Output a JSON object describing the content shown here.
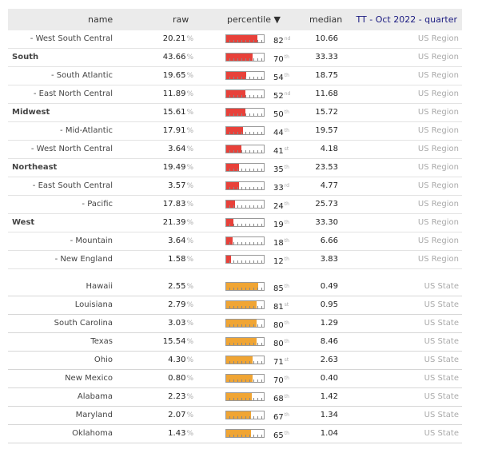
{
  "header": {
    "name": "name",
    "raw": "raw",
    "percentile": "percentile ▼",
    "median": "median",
    "context": "TT - Oct 2022 - quarter"
  },
  "colors": {
    "region_bar": "#e8413a",
    "state_bar": "#f0a534"
  },
  "region_rows": [
    {
      "name": "- West South Central",
      "bold": false,
      "raw": "20.21",
      "pct": 82,
      "suffix": "nd",
      "median": "10.66",
      "ctx": "US Region"
    },
    {
      "name": "South",
      "bold": true,
      "raw": "43.66",
      "pct": 70,
      "suffix": "th",
      "median": "33.33",
      "ctx": "US Region"
    },
    {
      "name": "- South Atlantic",
      "bold": false,
      "raw": "19.65",
      "pct": 54,
      "suffix": "th",
      "median": "18.75",
      "ctx": "US Region"
    },
    {
      "name": "- East North Central",
      "bold": false,
      "raw": "11.89",
      "pct": 52,
      "suffix": "nd",
      "median": "11.68",
      "ctx": "US Region"
    },
    {
      "name": "Midwest",
      "bold": true,
      "raw": "15.61",
      "pct": 50,
      "suffix": "th",
      "median": "15.72",
      "ctx": "US Region"
    },
    {
      "name": "- Mid-Atlantic",
      "bold": false,
      "raw": "17.91",
      "pct": 44,
      "suffix": "th",
      "median": "19.57",
      "ctx": "US Region"
    },
    {
      "name": "- West North Central",
      "bold": false,
      "raw": "3.64",
      "pct": 41,
      "suffix": "st",
      "median": "4.18",
      "ctx": "US Region"
    },
    {
      "name": "Northeast",
      "bold": true,
      "raw": "19.49",
      "pct": 35,
      "suffix": "th",
      "median": "23.53",
      "ctx": "US Region"
    },
    {
      "name": "- East South Central",
      "bold": false,
      "raw": "3.57",
      "pct": 33,
      "suffix": "rd",
      "median": "4.77",
      "ctx": "US Region"
    },
    {
      "name": "- Pacific",
      "bold": false,
      "raw": "17.83",
      "pct": 24,
      "suffix": "th",
      "median": "25.73",
      "ctx": "US Region"
    },
    {
      "name": "West",
      "bold": true,
      "raw": "21.39",
      "pct": 19,
      "suffix": "th",
      "median": "33.30",
      "ctx": "US Region"
    },
    {
      "name": "- Mountain",
      "bold": false,
      "raw": "3.64",
      "pct": 18,
      "suffix": "th",
      "median": "6.66",
      "ctx": "US Region"
    },
    {
      "name": "- New England",
      "bold": false,
      "raw": "1.58",
      "pct": 12,
      "suffix": "th",
      "median": "3.83",
      "ctx": "US Region"
    }
  ],
  "state_rows": [
    {
      "name": "Hawaii",
      "raw": "2.55",
      "pct": 85,
      "suffix": "th",
      "median": "0.49",
      "ctx": "US State"
    },
    {
      "name": "Louisiana",
      "raw": "2.79",
      "pct": 81,
      "suffix": "st",
      "median": "0.95",
      "ctx": "US State"
    },
    {
      "name": "South Carolina",
      "raw": "3.03",
      "pct": 80,
      "suffix": "th",
      "median": "1.29",
      "ctx": "US State"
    },
    {
      "name": "Texas",
      "raw": "15.54",
      "pct": 80,
      "suffix": "th",
      "median": "8.46",
      "ctx": "US State"
    },
    {
      "name": "Ohio",
      "raw": "4.30",
      "pct": 71,
      "suffix": "st",
      "median": "2.63",
      "ctx": "US State"
    },
    {
      "name": "New Mexico",
      "raw": "0.80",
      "pct": 70,
      "suffix": "th",
      "median": "0.40",
      "ctx": "US State"
    },
    {
      "name": "Alabama",
      "raw": "2.23",
      "pct": 68,
      "suffix": "th",
      "median": "1.42",
      "ctx": "US State"
    },
    {
      "name": "Maryland",
      "raw": "2.07",
      "pct": 67,
      "suffix": "th",
      "median": "1.34",
      "ctx": "US State"
    },
    {
      "name": "Oklahoma",
      "raw": "1.43",
      "pct": 65,
      "suffix": "th",
      "median": "1.04",
      "ctx": "US State"
    }
  ],
  "percent_sign": "%"
}
